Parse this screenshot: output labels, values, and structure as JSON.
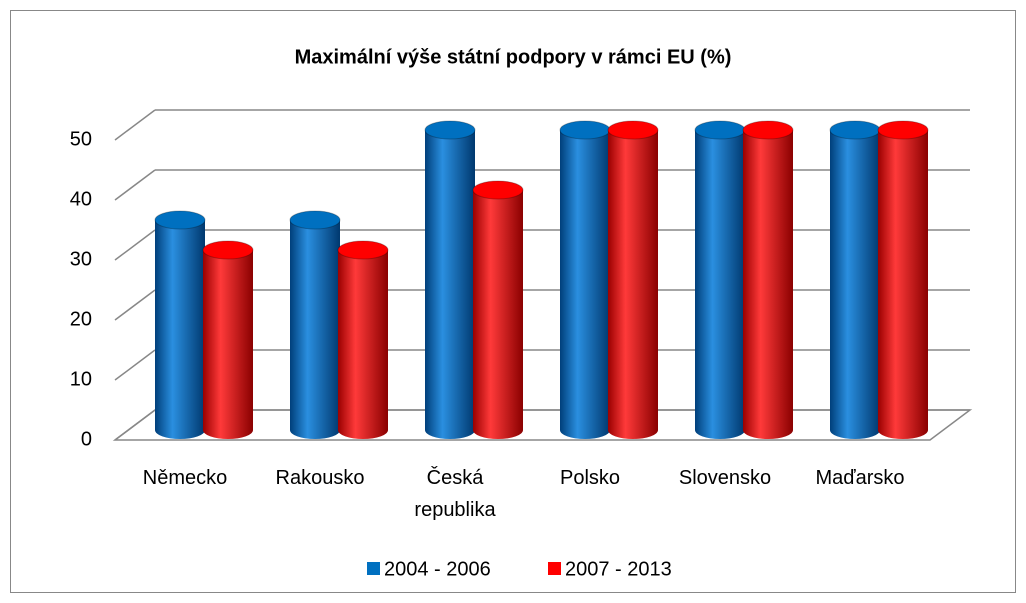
{
  "chart_data": {
    "type": "bar",
    "title": "Maximální výše státní podpory v rámci EU (%)",
    "categories": [
      "Německo",
      "Rakousko",
      "Česká republika",
      "Polsko",
      "Slovensko",
      "Maďarsko"
    ],
    "series": [
      {
        "name": "2004 - 2006",
        "color": "#0070c0",
        "values": [
          35,
          35,
          50,
          50,
          50,
          50
        ]
      },
      {
        "name": "2007 - 2013",
        "color": "#ff0000",
        "values": [
          30,
          30,
          40,
          50,
          50,
          50
        ]
      }
    ],
    "ylim": [
      0,
      50
    ],
    "yticks": [
      0,
      10,
      20,
      30,
      40,
      50
    ],
    "grid": true,
    "legend": "bottom"
  }
}
